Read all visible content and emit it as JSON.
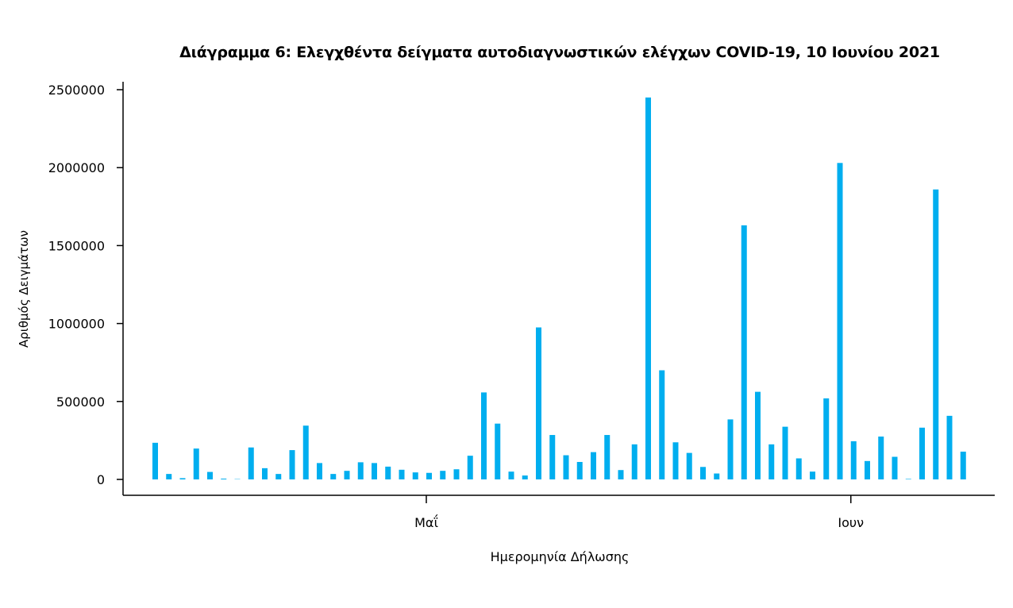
{
  "chart_data": {
    "type": "bar",
    "title": "Διάγραμμα 6: Ελεγχθέντα δείγματα αυτοδιαγνωστικών ελέγχων COVID-19, 10 Ιουνίου 2021",
    "xlabel": "Ημερομηνία Δήλωσης",
    "ylabel": "Αριθμός Δειγμάτων",
    "ylim": [
      0,
      2500000
    ],
    "yticks": [
      0,
      500000,
      1000000,
      1500000,
      2000000,
      2500000
    ],
    "ytick_labels": [
      "0",
      "500000",
      "1000000",
      "1500000",
      "2000000",
      "2500000"
    ],
    "xticks": [
      {
        "label": "Μαΐ",
        "index": 20
      },
      {
        "label": "Ιουν",
        "index": 51
      }
    ],
    "color": "#00aeef",
    "grid": false,
    "values": [
      235000,
      35000,
      8000,
      198000,
      48000,
      5000,
      2000,
      205000,
      72000,
      35000,
      188000,
      345000,
      105000,
      35000,
      55000,
      110000,
      105000,
      82000,
      62000,
      45000,
      42000,
      55000,
      65000,
      152000,
      558000,
      358000,
      50000,
      25000,
      975000,
      285000,
      155000,
      112000,
      175000,
      285000,
      60000,
      225000,
      2450000,
      700000,
      238000,
      170000,
      80000,
      38000,
      385000,
      1630000,
      562000,
      225000,
      338000,
      135000,
      50000,
      520000,
      2030000,
      245000,
      118000,
      275000,
      145000,
      3000,
      332000,
      1860000,
      408000,
      178000
    ]
  }
}
